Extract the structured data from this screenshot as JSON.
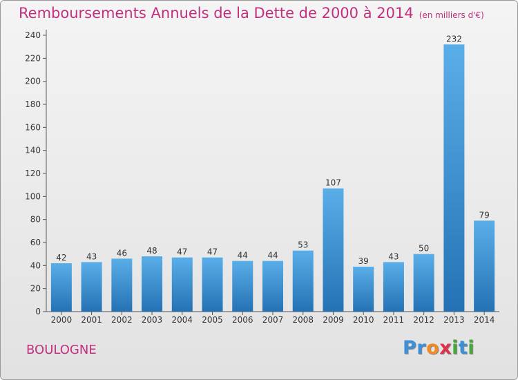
{
  "title": "Remboursements Annuels de la Dette de 2000 à 2014",
  "unit": "(en milliers d'€)",
  "city": "BOULOGNE",
  "logo": {
    "letters": [
      "P",
      "r",
      "o",
      "x",
      "i",
      "t",
      "i"
    ],
    "colors": [
      "#3d8fd6",
      "#3d8fd6",
      "#f08a24",
      "#e0304a",
      "#48a63c",
      "#3d8fd6",
      "#48a63c"
    ]
  },
  "colors": {
    "title": "#c0307f",
    "bar": "#3a8fd7",
    "bar_light": "#5aaee8",
    "bar_dark": "#2472b5"
  },
  "chart_data": {
    "type": "bar",
    "categories": [
      "2000",
      "2001",
      "2002",
      "2003",
      "2004",
      "2005",
      "2006",
      "2007",
      "2008",
      "2009",
      "2010",
      "2011",
      "2012",
      "2013",
      "2014"
    ],
    "values": [
      42,
      43,
      46,
      48,
      47,
      47,
      44,
      44,
      53,
      107,
      39,
      43,
      50,
      232,
      79
    ],
    "title": "Remboursements Annuels de la Dette de 2000 à 2014",
    "xlabel": "",
    "ylabel": "",
    "ylim": [
      0,
      240
    ],
    "yticks": [
      0,
      20,
      40,
      60,
      80,
      100,
      120,
      140,
      160,
      180,
      200,
      220,
      240
    ],
    "grid": false,
    "data_labels": true
  }
}
